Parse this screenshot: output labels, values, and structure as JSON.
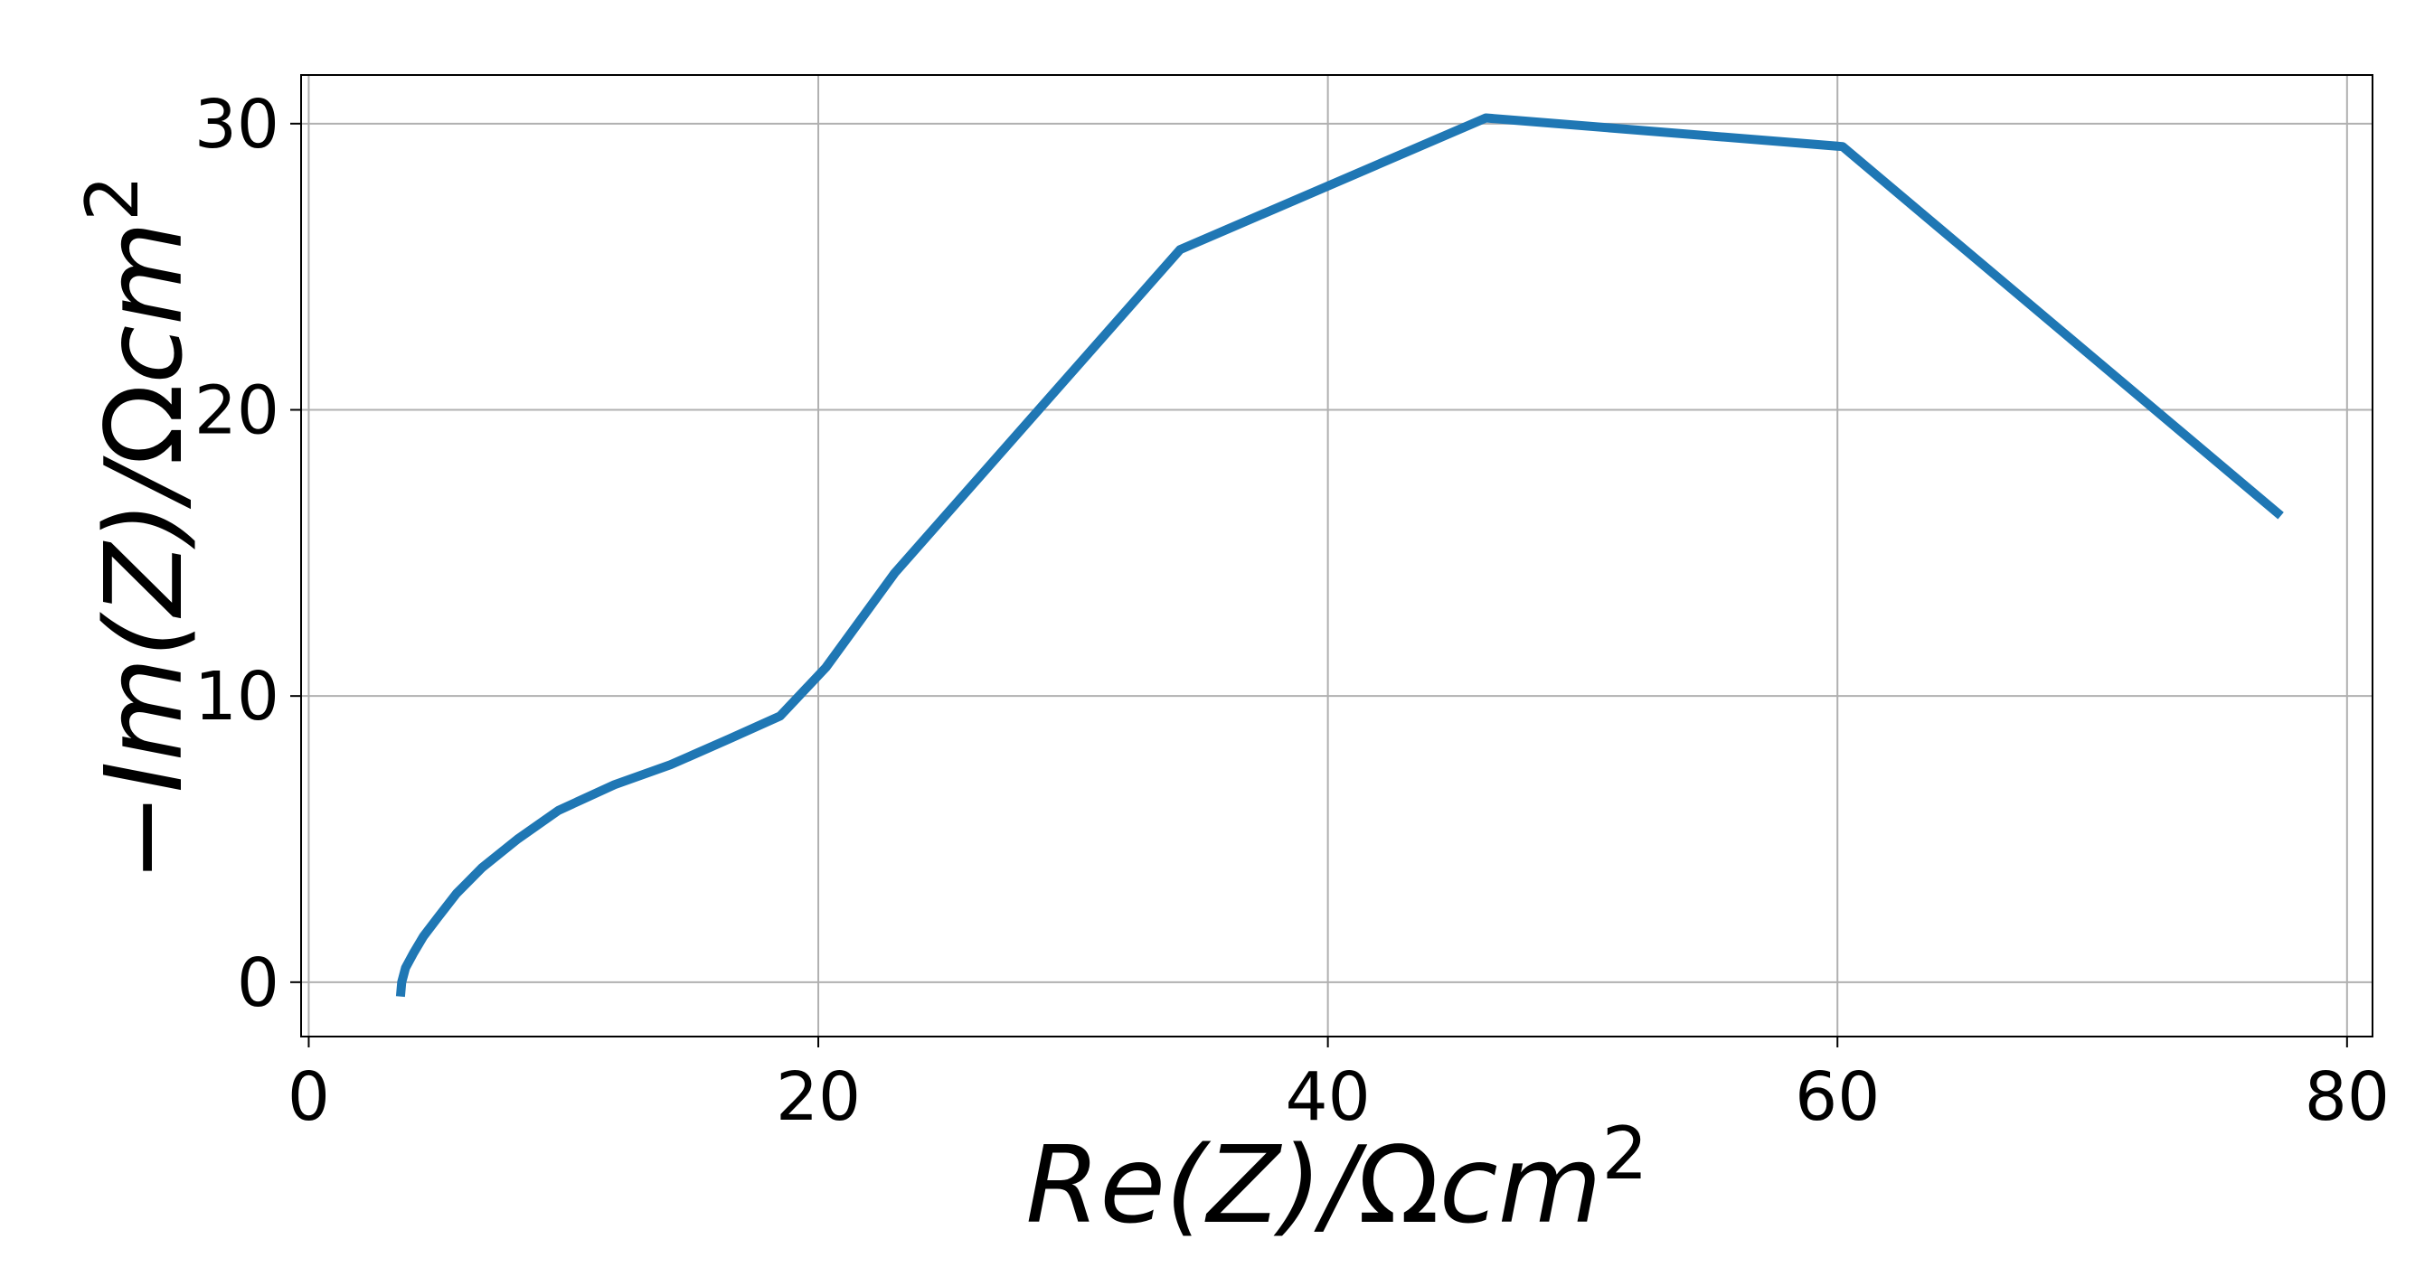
{
  "chart_data": {
    "type": "line",
    "title": "",
    "xlabel": "Re(Z)/Ωcm²",
    "ylabel": "−Im(Z)/Ωcm²",
    "xlim": [
      -0.3,
      81
    ],
    "ylim": [
      -1.9,
      31.7
    ],
    "xticks": [
      0,
      20,
      40,
      60,
      80
    ],
    "yticks": [
      0,
      10,
      20,
      30
    ],
    "grid": true,
    "legend": "none",
    "color": "#1f77b4",
    "series": [
      {
        "x": [
          3.6,
          3.65,
          3.8,
          4.1,
          4.5,
          5.1,
          5.8,
          6.8,
          8.2,
          9.8,
          12.0,
          14.2,
          16.5,
          18.5,
          20.3,
          23.0,
          34.2,
          46.2,
          60.2,
          77.4
        ],
        "y": [
          -0.5,
          0.0,
          0.5,
          1.0,
          1.6,
          2.3,
          3.1,
          4.0,
          5.0,
          6.0,
          6.9,
          7.6,
          8.5,
          9.3,
          11.0,
          14.3,
          25.6,
          30.2,
          29.2,
          16.3
        ]
      }
    ]
  }
}
